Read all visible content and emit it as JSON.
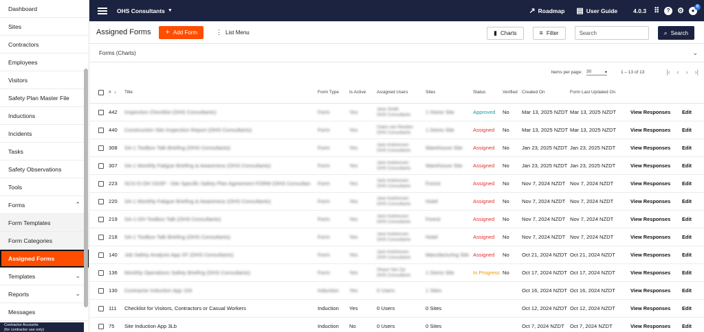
{
  "sidebar": {
    "items": [
      {
        "label": "Dashboard",
        "chevron": "",
        "type": "normal"
      },
      {
        "label": "Sites",
        "chevron": "",
        "type": "normal"
      },
      {
        "label": "Contractors",
        "chevron": "",
        "type": "normal"
      },
      {
        "label": "Employees",
        "chevron": "",
        "type": "normal"
      },
      {
        "label": "Visitors",
        "chevron": "",
        "type": "normal"
      },
      {
        "label": "Safety Plan Master File",
        "chevron": "",
        "type": "normal"
      },
      {
        "label": "Inductions",
        "chevron": "",
        "type": "normal"
      },
      {
        "label": "Incidents",
        "chevron": "",
        "type": "normal"
      },
      {
        "label": "Tasks",
        "chevron": "",
        "type": "normal"
      },
      {
        "label": "Safety Observations",
        "chevron": "",
        "type": "normal"
      },
      {
        "label": "Tools",
        "chevron": "",
        "type": "normal"
      },
      {
        "label": "Forms",
        "chevron": "⌃",
        "type": "normal"
      },
      {
        "label": "Form Templates",
        "chevron": "",
        "type": "sub"
      },
      {
        "label": "Form Categories",
        "chevron": "",
        "type": "sub"
      },
      {
        "label": "Assigned Forms",
        "chevron": "",
        "type": "active"
      },
      {
        "label": "Templates",
        "chevron": "⌄",
        "type": "normal"
      },
      {
        "label": "Reports",
        "chevron": "⌄",
        "type": "normal"
      },
      {
        "label": "Messages",
        "chevron": "",
        "type": "normal"
      }
    ],
    "contractor_title": "Contractor Accounts",
    "contractor_sub": "(for contractor use only)"
  },
  "topbar": {
    "org_name": "OHS Consultants",
    "roadmap_label": "Roadmap",
    "user_guide_label": "User Guide",
    "version": "4.0.3",
    "notification_count": "0"
  },
  "page": {
    "title": "Assigned Forms",
    "add_form_label": "Add Form",
    "list_menu_label": "List Menu",
    "charts_label": "Charts",
    "filter_label": "Filter",
    "search_placeholder": "Search",
    "search_button_label": "Search",
    "charts_panel_label": "Forms (Charts)"
  },
  "pagination": {
    "items_per_page_label": "Items per page:",
    "items_per_page_value": "30",
    "range_label": "1 – 13 of 13"
  },
  "table": {
    "headers": {
      "num": "#",
      "title": "Title",
      "form_type": "Form Type",
      "is_active": "Is Active",
      "assigned_users": "Assigned Users",
      "sites": "Sites",
      "status": "Status",
      "verified": "Verified",
      "created_on": "Created On",
      "last_updated": "Form Last Updated On"
    },
    "view_label": "View Responses",
    "edit_label": "Edit",
    "rows": [
      {
        "num": "442",
        "title": "Inspection Checklist (OHS Consultants)",
        "type": "Form",
        "active": "Yes",
        "users1": "Jane Smith",
        "users2": "OHS Consultants",
        "sites": "1 Home Site",
        "status": "Approved",
        "status_class": "approved",
        "verified": "No",
        "created": "Mar 13, 2025 NZDT",
        "updated": "Mar 13, 2025 NZDT",
        "blur": true
      },
      {
        "num": "440",
        "title": "Construction Site Inspection Report (OHS Consultants)",
        "type": "Form",
        "active": "Yes",
        "users1": "Claire van Reeden",
        "users2": "OHS Consultants",
        "sites": "1 Demo Site",
        "status": "Assigned",
        "status_class": "assigned",
        "verified": "No",
        "created": "Mar 13, 2025 NZDT",
        "updated": "Mar 13, 2025 NZDT",
        "blur": true
      },
      {
        "num": "308",
        "title": "SA-1 Toolbox Talk Briefing (OHS Consultants)",
        "type": "Form",
        "active": "Yes",
        "users1": "Jack Andriessen",
        "users2": "OHS Consultants",
        "sites": "Warehouse Site",
        "status": "Assigned",
        "status_class": "assigned",
        "verified": "No",
        "created": "Jan 23, 2025 NZDT",
        "updated": "Jan 23, 2025 NZDT",
        "blur": true
      },
      {
        "num": "307",
        "title": "SA-1 Monthly Fatigue Briefing & Awareness (OHS Consultants)",
        "type": "Form",
        "active": "Yes",
        "users1": "Jack Andriessen",
        "users2": "OHS Consultants",
        "sites": "Warehouse Site",
        "status": "Assigned",
        "status_class": "assigned",
        "verified": "No",
        "created": "Jan 23, 2025 NZDT",
        "updated": "Jan 23, 2025 NZDT",
        "blur": true
      },
      {
        "num": "223",
        "title": "SCS-O-OH SSSP - Site Specific Safety Plan Agreement FORM (OHS Consultants)",
        "type": "Form",
        "active": "Yes",
        "users1": "Jack Andriessen",
        "users2": "OHS Consultants",
        "sites": "Forest",
        "status": "Assigned",
        "status_class": "assigned",
        "verified": "No",
        "created": "Nov 7, 2024 NZDT",
        "updated": "Nov 7, 2024 NZDT",
        "blur": true
      },
      {
        "num": "220",
        "title": "SA-1 Monthly Fatigue Briefing & Awareness (OHS Consultants)",
        "type": "Form",
        "active": "Yes",
        "users1": "Jack Andriessen",
        "users2": "OHS Consultants",
        "sites": "Hotel",
        "status": "Assigned",
        "status_class": "assigned",
        "verified": "No",
        "created": "Nov 7, 2024 NZDT",
        "updated": "Nov 7, 2024 NZDT",
        "blur": true
      },
      {
        "num": "219",
        "title": "SA-1-OH Toolbox Talk (OHS Consultants)",
        "type": "Form",
        "active": "Yes",
        "users1": "Jack Andriessen",
        "users2": "OHS Consultants",
        "sites": "Forest",
        "status": "Assigned",
        "status_class": "assigned",
        "verified": "No",
        "created": "Nov 7, 2024 NZDT",
        "updated": "Nov 7, 2024 NZDT",
        "blur": true
      },
      {
        "num": "218",
        "title": "SA-1 Toolbox Talk Briefing (OHS Consultants)",
        "type": "Form",
        "active": "Yes",
        "users1": "Jack Andriessen",
        "users2": "OHS Consultants",
        "sites": "Hotel",
        "status": "Assigned",
        "status_class": "assigned",
        "verified": "No",
        "created": "Nov 7, 2024 NZDT",
        "updated": "Nov 7, 2024 NZDT",
        "blur": true
      },
      {
        "num": "140",
        "title": "Job Safety Analysis App XF (OHS Consultants)",
        "type": "Form",
        "active": "Yes",
        "users1": "Jack Andriessen",
        "users2": "OHS Consultants",
        "sites": "Manufacturing Site",
        "status": "Assigned",
        "status_class": "assigned",
        "verified": "No",
        "created": "Oct 21, 2024 NZDT",
        "updated": "Oct 21, 2024 NZDT",
        "blur": true
      },
      {
        "num": "136",
        "title": "Monthly Operations Safety Briefing (OHS Consultants)",
        "type": "Form",
        "active": "Yes",
        "users1": "Shaun Van Zyl",
        "users2": "OHS Consultants",
        "sites": "1 Demo Site",
        "status": "In Progress",
        "status_class": "progress",
        "verified": "No",
        "created": "Oct 17, 2024 NZDT",
        "updated": "Oct 17, 2024 NZDT",
        "blur": true
      },
      {
        "num": "130",
        "title": "Contractor Induction App 154",
        "type": "Induction",
        "active": "Yes",
        "users1": "0 Users",
        "users2": "",
        "sites": "1 Sites",
        "status": "",
        "status_class": "",
        "verified": "",
        "created": "Oct 16, 2024 NZDT",
        "updated": "Oct 16, 2024 NZDT",
        "blur": true
      },
      {
        "num": "111",
        "title": "Checklist for Visitors, Contractors or Casual Workers",
        "type": "Induction",
        "active": "Yes",
        "users1": "0 Users",
        "users2": "",
        "sites": "0 Sites",
        "status": "",
        "status_class": "",
        "verified": "",
        "created": "Oct 12, 2024 NZDT",
        "updated": "Oct 12, 2024 NZDT",
        "blur": false
      },
      {
        "num": "75",
        "title": "Site Induction App 3Lb",
        "type": "Induction",
        "active": "No",
        "users1": "0 Users",
        "users2": "",
        "sites": "0 Sites",
        "status": "",
        "status_class": "",
        "verified": "",
        "created": "Oct 7, 2024 NZDT",
        "updated": "Oct 7, 2024 NZDT",
        "blur": false
      }
    ]
  }
}
